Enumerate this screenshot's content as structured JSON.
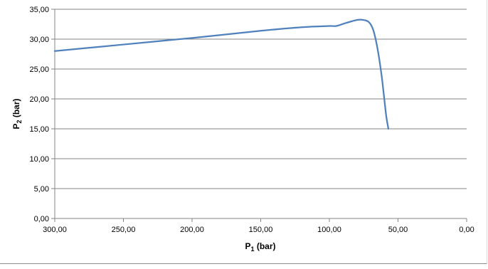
{
  "chart_data": {
    "type": "line",
    "title": "",
    "xlabel": {
      "main": "P",
      "sub": "1",
      "unit": " (bar)"
    },
    "ylabel": {
      "main": "P",
      "sub": "2",
      "unit": " (bar)"
    },
    "xlim": [
      300,
      0
    ],
    "ylim": [
      0,
      35
    ],
    "x_reversed": true,
    "grid": {
      "horizontal": true,
      "vertical": false
    },
    "line_color": "#4f81bd",
    "x_ticks": [
      {
        "value": 300,
        "label": "300,00"
      },
      {
        "value": 250,
        "label": "250,00"
      },
      {
        "value": 200,
        "label": "200,00"
      },
      {
        "value": 150,
        "label": "150,00"
      },
      {
        "value": 100,
        "label": "100,00"
      },
      {
        "value": 50,
        "label": "50,00"
      },
      {
        "value": 0,
        "label": "0,00"
      }
    ],
    "y_ticks": [
      {
        "value": 0,
        "label": "0,00"
      },
      {
        "value": 5,
        "label": "5,00"
      },
      {
        "value": 10,
        "label": "10,00"
      },
      {
        "value": 15,
        "label": "15,00"
      },
      {
        "value": 20,
        "label": "20,00"
      },
      {
        "value": 25,
        "label": "25,00"
      },
      {
        "value": 30,
        "label": "30,00"
      },
      {
        "value": 35,
        "label": "35,00"
      }
    ],
    "series": [
      {
        "x": [
          300,
          250,
          200,
          150,
          120,
          100,
          95,
          88,
          80,
          75,
          71,
          68,
          65,
          62,
          60,
          58.5,
          57
        ],
        "y": [
          28.0,
          29.1,
          30.2,
          31.4,
          32.0,
          32.2,
          32.2,
          32.7,
          33.2,
          33.2,
          32.8,
          31.5,
          28.5,
          24.0,
          20.0,
          17.0,
          15.0
        ]
      }
    ]
  }
}
